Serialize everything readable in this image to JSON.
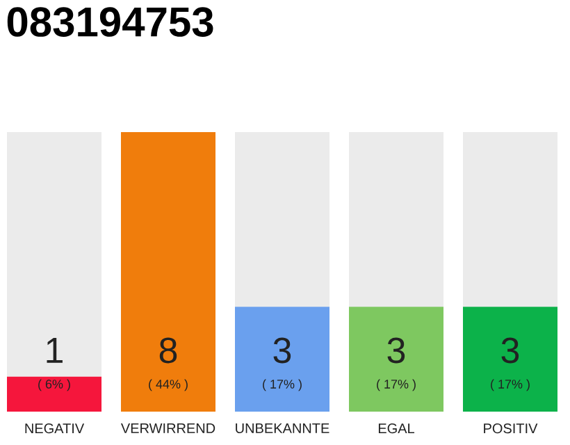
{
  "chart_data": {
    "type": "bar",
    "title": "083194753",
    "categories": [
      "NEGATIV",
      "VERWIRREND",
      "UNBEKANNTE",
      "EGAL",
      "POSITIV"
    ],
    "values": [
      1,
      8,
      3,
      3,
      3
    ],
    "colors": [
      "#f5163c",
      "#f07d0c",
      "#6aa0ee",
      "#7ec860",
      "#0cb24a"
    ],
    "data_labels": true,
    "annotations": [
      "( 6% )",
      "( 44% )",
      "( 17% )",
      "( 17% )",
      "( 17% )"
    ]
  }
}
